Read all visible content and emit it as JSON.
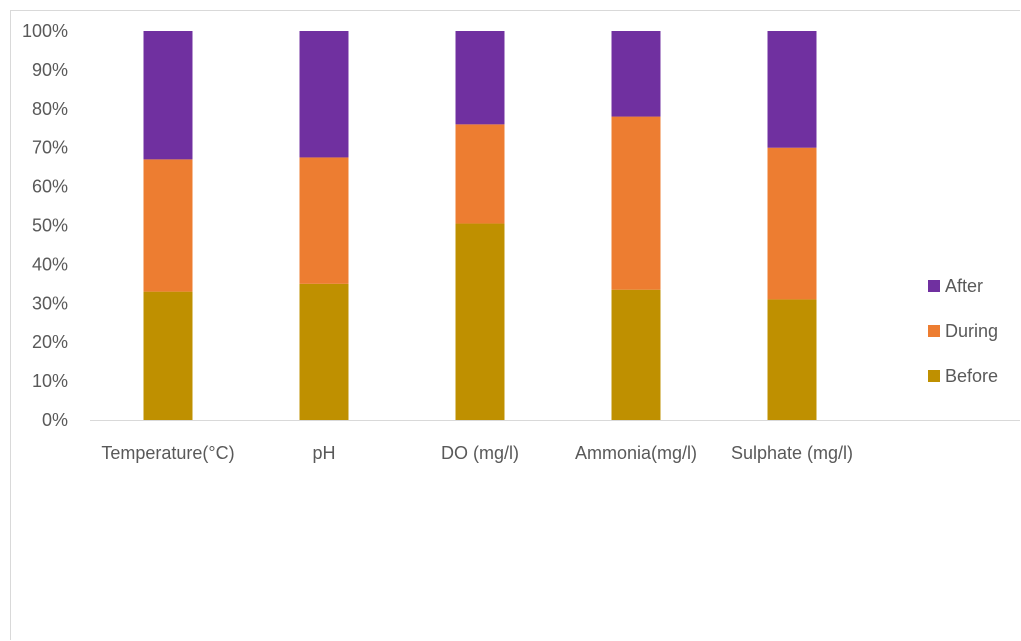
{
  "chart_data": {
    "type": "bar",
    "stacked": true,
    "normalized": true,
    "categories": [
      "Temperature(°C)",
      "pH",
      "DO  (mg/l)",
      "Ammonia(mg/l)",
      "Sulphate (mg/l)"
    ],
    "series": [
      {
        "name": "Before",
        "color": "#bf9000",
        "values": [
          33.0,
          35.0,
          50.5,
          33.5,
          31.0
        ]
      },
      {
        "name": "During",
        "color": "#ed7d31",
        "values": [
          34.0,
          32.5,
          25.5,
          44.5,
          39.0
        ]
      },
      {
        "name": "After",
        "color": "#7030a0",
        "values": [
          33.0,
          32.5,
          24.0,
          22.0,
          30.0
        ]
      }
    ],
    "ylim": [
      0,
      100
    ],
    "yticks": [
      "0%",
      "10%",
      "20%",
      "30%",
      "40%",
      "50%",
      "60%",
      "70%",
      "80%",
      "90%",
      "100%"
    ],
    "title": "",
    "xlabel": "",
    "ylabel": "",
    "legend": {
      "placement": "right",
      "order": [
        "After",
        "During",
        "Before"
      ]
    },
    "grid": false
  }
}
